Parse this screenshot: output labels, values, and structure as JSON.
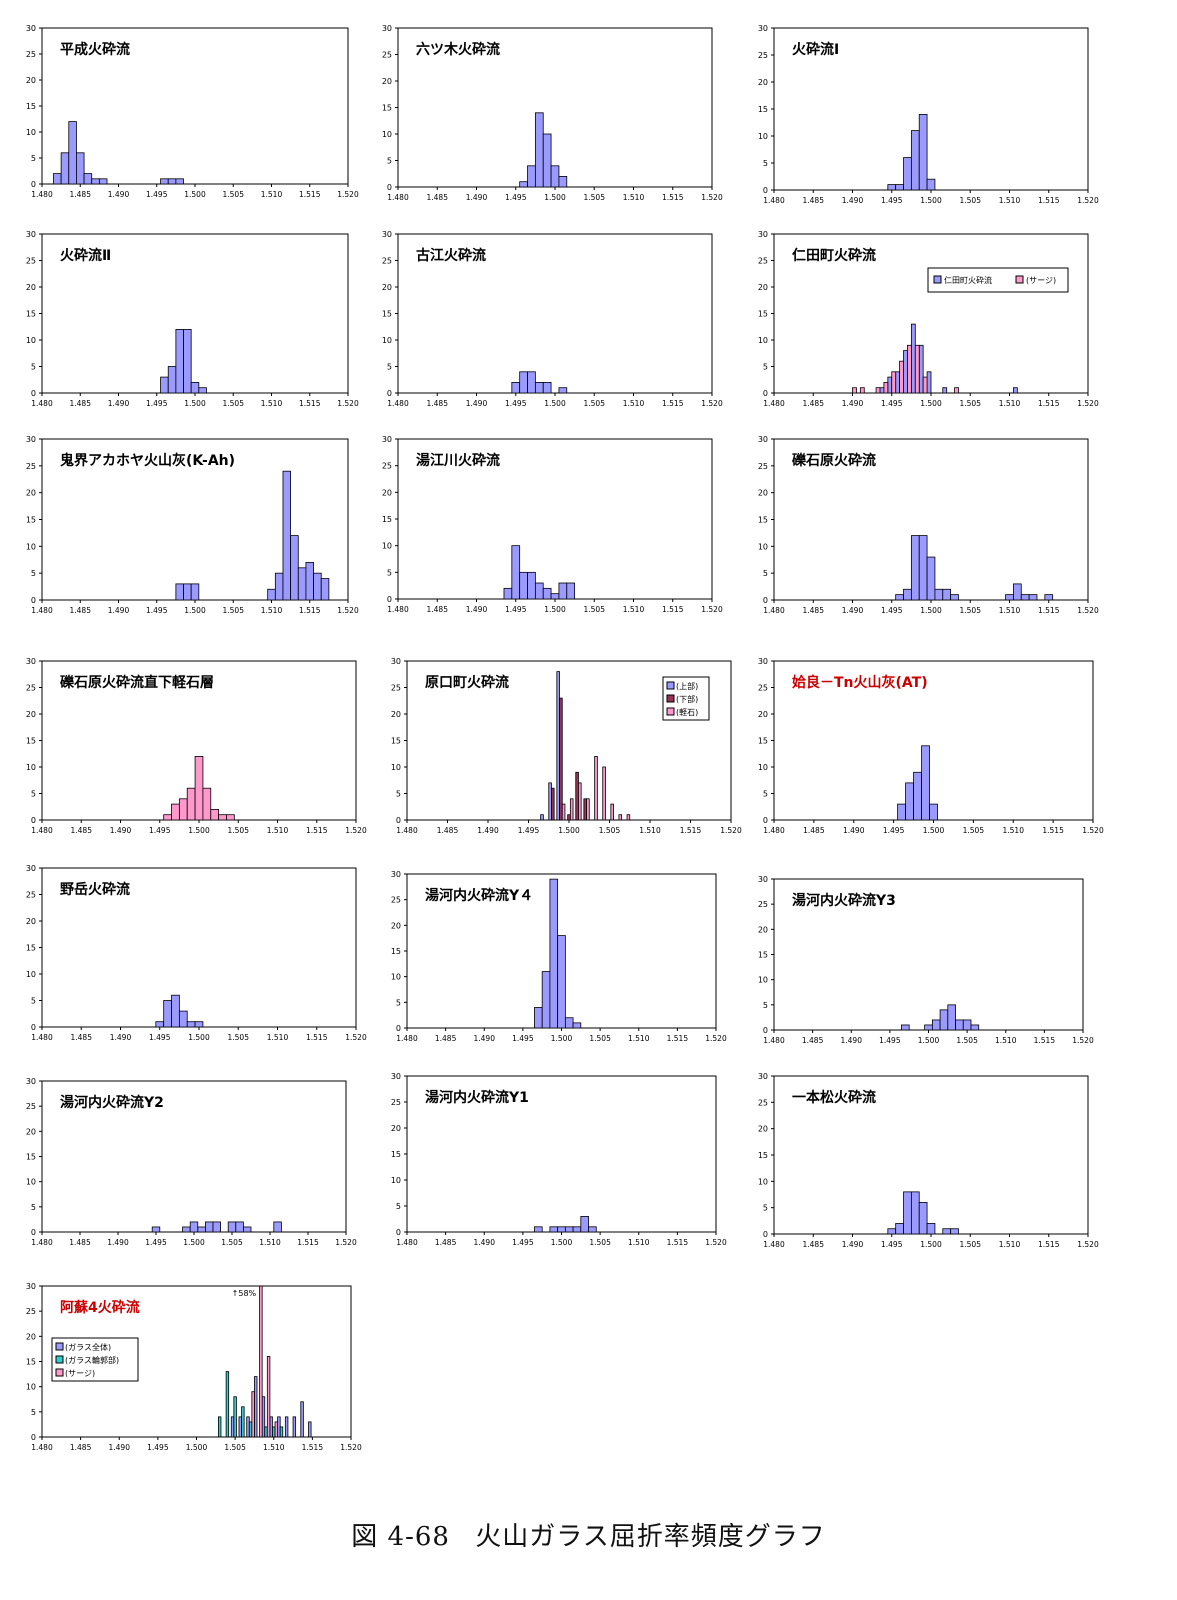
{
  "caption": {
    "figure_no": "図 4-68",
    "title": "火山ガラス屈折率頻度グラフ"
  },
  "styles": {
    "blue": "#9a9aff",
    "red": "#993355",
    "pink": "#ff99cc",
    "cyan": "#33cccc",
    "title_red": "#cc0000"
  },
  "chart_data": [
    {
      "type": "bar",
      "title": "平成火砕流",
      "x": [
        1.482,
        1.483,
        1.484,
        1.485,
        1.486,
        1.487,
        1.488,
        1.496,
        1.497,
        1.498
      ],
      "series": [
        {
          "color": "blue",
          "values": [
            2,
            6,
            12,
            6,
            2,
            1,
            1,
            1,
            1,
            1
          ]
        }
      ],
      "xlim": [
        1.48,
        1.52
      ],
      "ylim": [
        0,
        30
      ],
      "xticks": [
        "1.480",
        "1.485",
        "1.490",
        "1.495",
        "1.500",
        "1.505",
        "1.510",
        "1.515",
        "1.520"
      ],
      "yticks": [
        "0",
        "5",
        "10",
        "15",
        "20",
        "25",
        "30"
      ]
    },
    {
      "type": "bar",
      "title": "六ツ木火砕流",
      "x": [
        1.496,
        1.497,
        1.498,
        1.499,
        1.5,
        1.501
      ],
      "series": [
        {
          "color": "blue",
          "values": [
            1,
            4,
            14,
            10,
            4,
            2
          ]
        }
      ],
      "xlim": [
        1.48,
        1.52
      ],
      "ylim": [
        0,
        30
      ],
      "xticks": [
        "1.480",
        "1.485",
        "1.490",
        "1.495",
        "1.500",
        "1.505",
        "1.510",
        "1.515",
        "1.520"
      ],
      "yticks": [
        "0",
        "5",
        "10",
        "15",
        "20",
        "25",
        "30"
      ]
    },
    {
      "type": "bar",
      "title": "火砕流Ⅰ",
      "x": [
        1.495,
        1.496,
        1.497,
        1.498,
        1.499,
        1.5
      ],
      "series": [
        {
          "color": "blue",
          "values": [
            1,
            1,
            6,
            11,
            14,
            2
          ]
        }
      ],
      "xlim": [
        1.48,
        1.52
      ],
      "ylim": [
        0,
        30
      ],
      "xticks": [
        "1.480",
        "1.485",
        "1.490",
        "1.495",
        "1.500",
        "1.505",
        "1.510",
        "1.515",
        "1.520"
      ],
      "yticks": [
        "0",
        "5",
        "10",
        "15",
        "20",
        "25",
        "30"
      ]
    },
    {
      "type": "bar",
      "title": "火砕流Ⅱ",
      "x": [
        1.496,
        1.497,
        1.498,
        1.499,
        1.5,
        1.501
      ],
      "series": [
        {
          "color": "blue",
          "values": [
            3,
            5,
            12,
            12,
            2,
            1
          ]
        }
      ],
      "xlim": [
        1.48,
        1.52
      ],
      "ylim": [
        0,
        30
      ],
      "xticks": [
        "1.480",
        "1.485",
        "1.490",
        "1.495",
        "1.500",
        "1.505",
        "1.510",
        "1.515",
        "1.520"
      ],
      "yticks": [
        "0",
        "5",
        "10",
        "15",
        "20",
        "25",
        "30"
      ]
    },
    {
      "type": "bar",
      "title": "古江火砕流",
      "x": [
        1.495,
        1.496,
        1.497,
        1.498,
        1.499,
        1.501
      ],
      "series": [
        {
          "color": "blue",
          "values": [
            2,
            4,
            4,
            2,
            2,
            1
          ]
        }
      ],
      "xlim": [
        1.48,
        1.52
      ],
      "ylim": [
        0,
        30
      ],
      "xticks": [
        "1.480",
        "1.485",
        "1.490",
        "1.495",
        "1.500",
        "1.505",
        "1.510",
        "1.515",
        "1.520"
      ],
      "yticks": [
        "0",
        "5",
        "10",
        "15",
        "20",
        "25",
        "30"
      ]
    },
    {
      "type": "bar",
      "title": "仁田町火砕流",
      "legend_position": "top-right",
      "x": [
        1.49,
        1.491,
        1.493,
        1.494,
        1.495,
        1.496,
        1.497,
        1.498,
        1.499,
        1.5,
        1.502,
        1.503,
        1.511
      ],
      "series": [
        {
          "name": "仁田町火砕流",
          "color": "blue",
          "values": [
            0,
            0,
            0,
            1,
            3,
            4,
            8,
            13,
            9,
            4,
            1,
            0,
            1
          ]
        },
        {
          "name": "(サージ)",
          "color": "pink",
          "values": [
            1,
            1,
            1,
            2,
            4,
            6,
            9,
            9,
            3,
            0,
            0,
            1,
            0
          ]
        }
      ],
      "xlim": [
        1.48,
        1.52
      ],
      "ylim": [
        0,
        30
      ],
      "xticks": [
        "1.480",
        "1.485",
        "1.490",
        "1.495",
        "1.500",
        "1.505",
        "1.510",
        "1.515",
        "1.520"
      ],
      "yticks": [
        "0",
        "5",
        "10",
        "15",
        "20",
        "25",
        "30"
      ]
    },
    {
      "type": "bar",
      "title": "鬼界アカホヤ火山灰(K-Ah)",
      "x": [
        1.498,
        1.499,
        1.5,
        1.51,
        1.511,
        1.512,
        1.513,
        1.514,
        1.515,
        1.516,
        1.517
      ],
      "series": [
        {
          "color": "blue",
          "values": [
            3,
            3,
            3,
            2,
            5,
            24,
            12,
            6,
            7,
            5,
            4
          ]
        }
      ],
      "xlim": [
        1.48,
        1.52
      ],
      "ylim": [
        0,
        30
      ],
      "xticks": [
        "1.480",
        "1.485",
        "1.490",
        "1.495",
        "1.500",
        "1.505",
        "1.510",
        "1.515",
        "1.520"
      ],
      "yticks": [
        "0",
        "5",
        "10",
        "15",
        "20",
        "25",
        "30"
      ]
    },
    {
      "type": "bar",
      "title": "湯江川火砕流",
      "x": [
        1.494,
        1.495,
        1.496,
        1.497,
        1.498,
        1.499,
        1.5,
        1.501,
        1.502
      ],
      "series": [
        {
          "color": "blue",
          "values": [
            2,
            10,
            5,
            5,
            3,
            2,
            1,
            3,
            3
          ]
        }
      ],
      "xlim": [
        1.48,
        1.52
      ],
      "ylim": [
        0,
        30
      ],
      "xticks": [
        "1.480",
        "1.485",
        "1.490",
        "1.495",
        "1.500",
        "1.505",
        "1.510",
        "1.515",
        "1.520"
      ],
      "yticks": [
        "0",
        "5",
        "10",
        "15",
        "20",
        "25",
        "30"
      ]
    },
    {
      "type": "bar",
      "title": "礫石原火砕流",
      "x": [
        1.496,
        1.497,
        1.498,
        1.499,
        1.5,
        1.501,
        1.502,
        1.503,
        1.51,
        1.511,
        1.512,
        1.513,
        1.514,
        1.515
      ],
      "series": [
        {
          "color": "blue",
          "values": [
            1,
            2,
            12,
            12,
            8,
            2,
            2,
            1,
            1,
            3,
            1,
            1,
            0,
            1
          ]
        }
      ],
      "xlim": [
        1.48,
        1.52
      ],
      "ylim": [
        0,
        30
      ],
      "xticks": [
        "1.480",
        "1.485",
        "1.490",
        "1.495",
        "1.500",
        "1.505",
        "1.510",
        "1.515",
        "1.520"
      ],
      "yticks": [
        "0",
        "5",
        "10",
        "15",
        "20",
        "25",
        "30"
      ]
    },
    {
      "type": "bar",
      "title": "礫石原火砕流直下軽石層",
      "x": [
        1.496,
        1.497,
        1.498,
        1.499,
        1.5,
        1.501,
        1.502,
        1.503,
        1.504
      ],
      "series": [
        {
          "color": "pink",
          "values": [
            1,
            3,
            4,
            6,
            12,
            6,
            2,
            1,
            1
          ]
        }
      ],
      "xlim": [
        1.48,
        1.52
      ],
      "ylim": [
        0,
        30
      ],
      "xticks": [
        "1.480",
        "1.485",
        "1.490",
        "1.495",
        "1.500",
        "1.505",
        "1.510",
        "1.515",
        "1.520"
      ],
      "yticks": [
        "0",
        "5",
        "10",
        "15",
        "20",
        "25",
        "30"
      ]
    },
    {
      "type": "bar",
      "title": "原口町火砕流",
      "legend_position": "top-right",
      "x": [
        1.497,
        1.498,
        1.499,
        1.5,
        1.501,
        1.502,
        1.503,
        1.504,
        1.505,
        1.506,
        1.507
      ],
      "series": [
        {
          "name": "(上部)",
          "color": "blue",
          "values": [
            1,
            7,
            28,
            0,
            0,
            0,
            0,
            0,
            0,
            0,
            0
          ]
        },
        {
          "name": "(下部)",
          "color": "red",
          "values": [
            0,
            6,
            23,
            1,
            9,
            4,
            0,
            0,
            0,
            0,
            0
          ]
        },
        {
          "name": "(軽石)",
          "color": "pink",
          "values": [
            0,
            0,
            3,
            4,
            7,
            4,
            12,
            10,
            3,
            1,
            1
          ]
        }
      ],
      "xlim": [
        1.48,
        1.52
      ],
      "ylim": [
        0,
        30
      ],
      "xticks": [
        "1.480",
        "1.485",
        "1.490",
        "1.495",
        "1.500",
        "1.505",
        "1.510",
        "1.515",
        "1.520"
      ],
      "yticks": [
        "0",
        "5",
        "10",
        "15",
        "20",
        "25",
        "30"
      ]
    },
    {
      "type": "bar",
      "title": "姶良－Tn火山灰(AT)",
      "title_color": "title_red",
      "x": [
        1.496,
        1.497,
        1.498,
        1.499,
        1.5
      ],
      "series": [
        {
          "color": "blue",
          "values": [
            3,
            7,
            9,
            14,
            3
          ]
        }
      ],
      "xlim": [
        1.48,
        1.52
      ],
      "ylim": [
        0,
        30
      ],
      "xticks": [
        "1.480",
        "1.485",
        "1.490",
        "1.495",
        "1.500",
        "1.505",
        "1.510",
        "1.515",
        "1.520"
      ],
      "yticks": [
        "0",
        "5",
        "10",
        "15",
        "20",
        "25",
        "30"
      ]
    },
    {
      "type": "bar",
      "title": "野岳火砕流",
      "x": [
        1.495,
        1.496,
        1.497,
        1.498,
        1.499,
        1.5
      ],
      "series": [
        {
          "color": "blue",
          "values": [
            1,
            5,
            6,
            3,
            1,
            1
          ]
        }
      ],
      "xlim": [
        1.48,
        1.52
      ],
      "ylim": [
        0,
        30
      ],
      "xticks": [
        "1.480",
        "1.485",
        "1.490",
        "1.495",
        "1.500",
        "1.505",
        "1.510",
        "1.515",
        "1.520"
      ],
      "yticks": [
        "0",
        "5",
        "10",
        "15",
        "20",
        "25",
        "30"
      ]
    },
    {
      "type": "bar",
      "title": "湯河内火砕流Y４",
      "x": [
        1.497,
        1.498,
        1.499,
        1.5,
        1.501,
        1.502
      ],
      "series": [
        {
          "color": "blue",
          "values": [
            4,
            11,
            29,
            18,
            2,
            1
          ]
        }
      ],
      "xlim": [
        1.48,
        1.52
      ],
      "ylim": [
        0,
        30
      ],
      "xticks": [
        "1.480",
        "1.485",
        "1.490",
        "1.495",
        "1.500",
        "1.505",
        "1.510",
        "1.515",
        "1.520"
      ],
      "yticks": [
        "0",
        "5",
        "10",
        "15",
        "20",
        "25",
        "30"
      ]
    },
    {
      "type": "bar",
      "title": "湯河内火砕流Y3",
      "x": [
        1.497,
        1.5,
        1.501,
        1.502,
        1.503,
        1.504,
        1.505,
        1.506
      ],
      "series": [
        {
          "color": "blue",
          "values": [
            1,
            1,
            2,
            4,
            5,
            2,
            2,
            1
          ]
        }
      ],
      "xlim": [
        1.48,
        1.52
      ],
      "ylim": [
        0,
        30
      ],
      "xticks": [
        "1.480",
        "1.485",
        "1.490",
        "1.495",
        "1.500",
        "1.505",
        "1.510",
        "1.515",
        "1.520"
      ],
      "yticks": [
        "0",
        "5",
        "10",
        "15",
        "20",
        "25",
        "30"
      ]
    },
    {
      "type": "bar",
      "title": "湯河内火砕流Y2",
      "x": [
        1.495,
        1.499,
        1.5,
        1.501,
        1.502,
        1.503,
        1.505,
        1.506,
        1.507,
        1.511
      ],
      "series": [
        {
          "color": "blue",
          "values": [
            1,
            1,
            2,
            1,
            2,
            2,
            2,
            2,
            1,
            2
          ]
        }
      ],
      "xlim": [
        1.48,
        1.52
      ],
      "ylim": [
        0,
        30
      ],
      "xticks": [
        "1.480",
        "1.485",
        "1.490",
        "1.495",
        "1.500",
        "1.505",
        "1.510",
        "1.515",
        "1.520"
      ],
      "yticks": [
        "0",
        "5",
        "10",
        "15",
        "20",
        "25",
        "30"
      ]
    },
    {
      "type": "bar",
      "title": "湯河内火砕流Y1",
      "x": [
        1.497,
        1.499,
        1.5,
        1.501,
        1.502,
        1.503,
        1.504
      ],
      "series": [
        {
          "color": "blue",
          "values": [
            1,
            1,
            1,
            1,
            1,
            3,
            1
          ]
        }
      ],
      "xlim": [
        1.48,
        1.52
      ],
      "ylim": [
        0,
        30
      ],
      "xticks": [
        "1.480",
        "1.485",
        "1.490",
        "1.495",
        "1.500",
        "1.505",
        "1.510",
        "1.515",
        "1.520"
      ],
      "yticks": [
        "0",
        "5",
        "10",
        "15",
        "20",
        "25",
        "30"
      ]
    },
    {
      "type": "bar",
      "title": "一本松火砕流",
      "x": [
        1.495,
        1.496,
        1.497,
        1.498,
        1.499,
        1.5,
        1.502,
        1.503
      ],
      "series": [
        {
          "color": "blue",
          "values": [
            1,
            2,
            8,
            8,
            6,
            2,
            1,
            1
          ]
        }
      ],
      "xlim": [
        1.48,
        1.52
      ],
      "ylim": [
        0,
        30
      ],
      "xticks": [
        "1.480",
        "1.485",
        "1.490",
        "1.495",
        "1.500",
        "1.505",
        "1.510",
        "1.515",
        "1.520"
      ],
      "yticks": [
        "0",
        "5",
        "10",
        "15",
        "20",
        "25",
        "30"
      ]
    },
    {
      "type": "bar",
      "title": "阿蘇4火砕流",
      "title_color": "title_red",
      "legend_position": "left",
      "annotation": "↑58%",
      "annotation_x": 1.5085,
      "x": [
        1.503,
        1.504,
        1.505,
        1.506,
        1.507,
        1.508,
        1.509,
        1.51,
        1.511,
        1.512,
        1.513,
        1.514,
        1.515
      ],
      "series": [
        {
          "name": "(ガラス全体)",
          "color": "blue",
          "values": [
            0,
            0,
            4,
            4,
            4,
            12,
            8,
            4,
            4,
            4,
            4,
            7,
            3
          ]
        },
        {
          "name": "(ガラス輪郭部)",
          "color": "cyan",
          "values": [
            4,
            13,
            8,
            6,
            3,
            0,
            2,
            2,
            2,
            0,
            0,
            0,
            0
          ]
        },
        {
          "name": "(サージ)",
          "color": "pink",
          "values": [
            0,
            0,
            0,
            0,
            9,
            30,
            16,
            3,
            0,
            0,
            0,
            0,
            0
          ]
        }
      ],
      "xlim": [
        1.48,
        1.52
      ],
      "ylim": [
        0,
        30
      ],
      "xticks": [
        "1.480",
        "1.485",
        "1.490",
        "1.495",
        "1.500",
        "1.505",
        "1.510",
        "1.515",
        "1.520"
      ],
      "yticks": [
        "0",
        "5",
        "10",
        "15",
        "20",
        "25",
        "30"
      ]
    }
  ]
}
